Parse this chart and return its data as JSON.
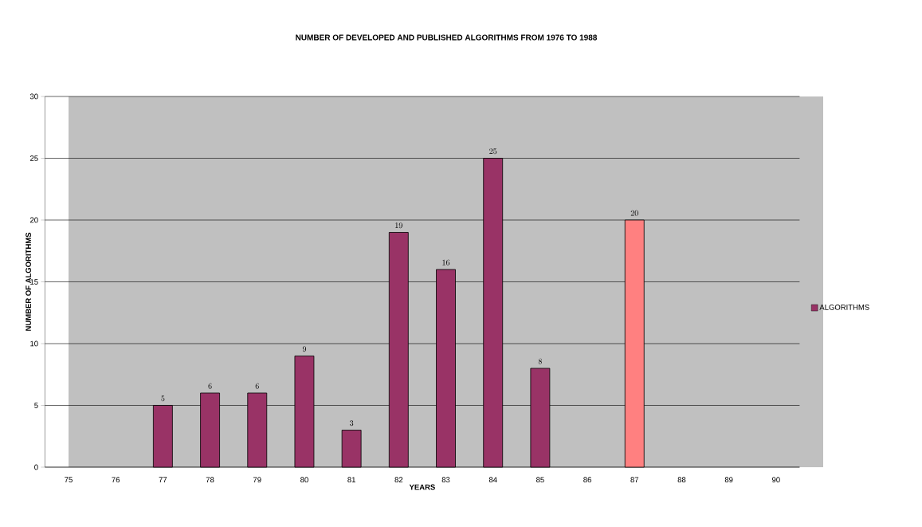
{
  "chart_data": {
    "type": "bar",
    "title": "NUMBER OF DEVELOPED AND PUBLISHED ALGORITHMS FROM  1976 TO 1988",
    "xlabel": "YEARS",
    "ylabel": "NUMBER OF ALGORITHMS",
    "categories": [
      "75",
      "76",
      "77",
      "78",
      "79",
      "80",
      "81",
      "82",
      "83",
      "84",
      "85",
      "86",
      "87",
      "88",
      "89",
      "90"
    ],
    "series": [
      {
        "name": "ALGORITHMS",
        "color": "#993366",
        "values": [
          null,
          null,
          5,
          6,
          6,
          9,
          3,
          19,
          16,
          25,
          8,
          null,
          20,
          null,
          null,
          null
        ],
        "colors": [
          "#993366",
          "#993366",
          "#993366",
          "#993366",
          "#993366",
          "#993366",
          "#993366",
          "#993366",
          "#993366",
          "#993366",
          "#993366",
          "#993366",
          "#ff8080",
          "#993366",
          "#993366",
          "#993366"
        ]
      }
    ],
    "ylim": [
      0,
      30
    ],
    "yticks": [
      0,
      5,
      10,
      15,
      20,
      25,
      30
    ],
    "grid": "y",
    "legend": "right",
    "data_labels": true
  }
}
